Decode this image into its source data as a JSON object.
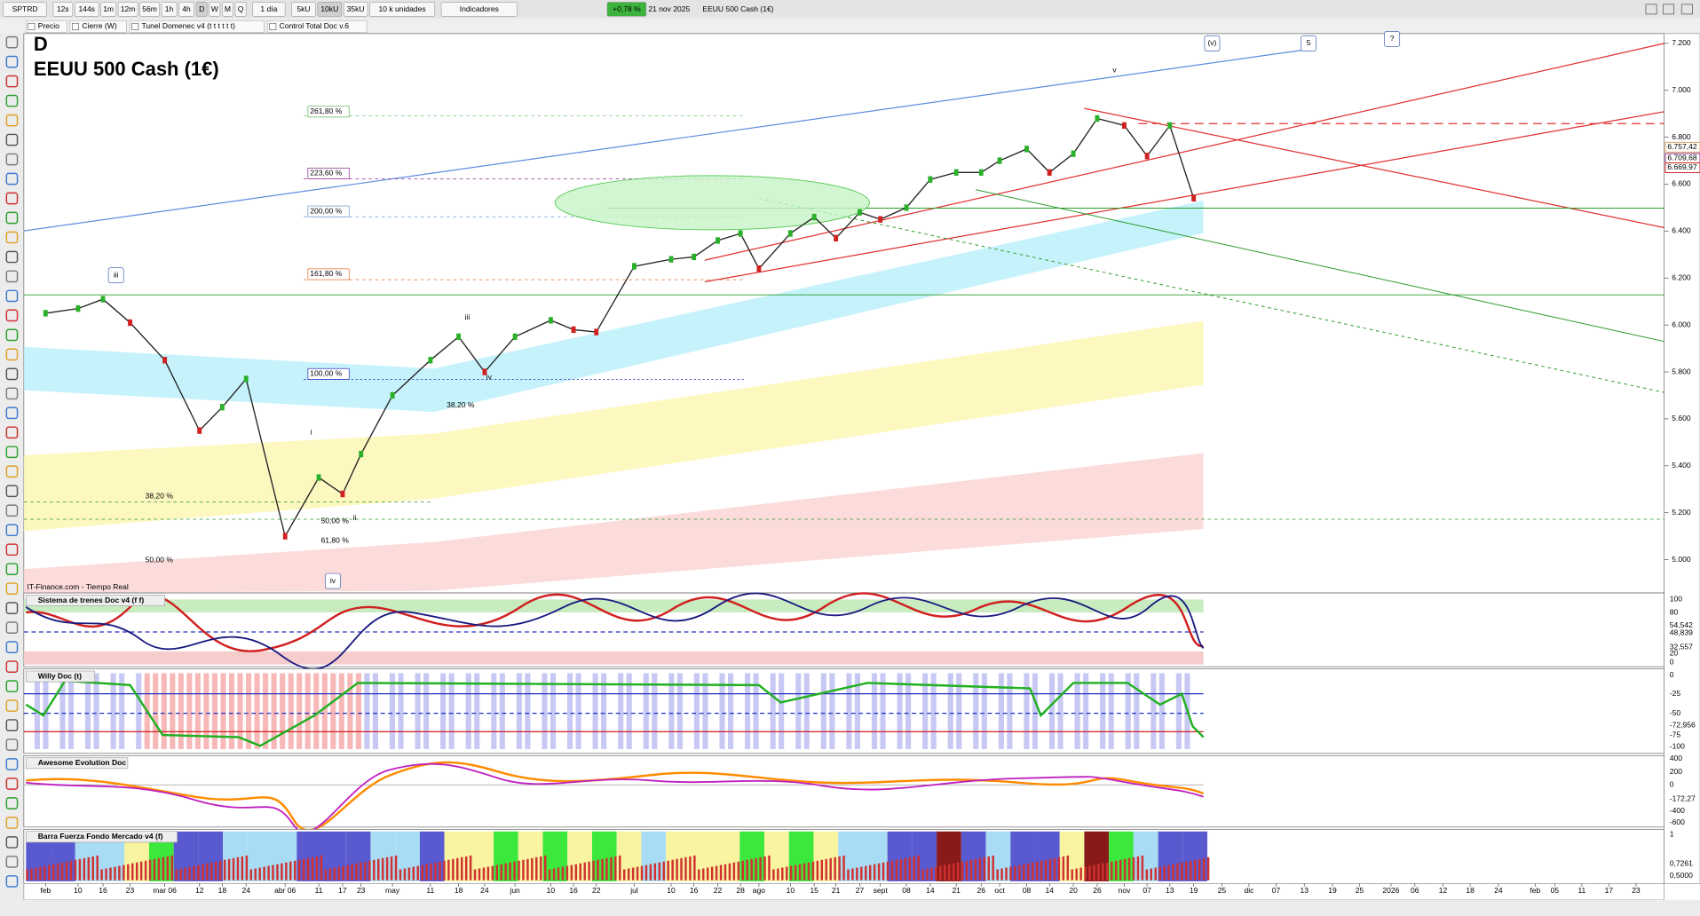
{
  "toolbar": {
    "symbol": "SPTRD",
    "intervals": [
      "12s",
      "144s",
      "1m",
      "12m",
      "56m",
      "1h",
      "4h",
      "D",
      "W",
      "M",
      "Q"
    ],
    "period": "1 día",
    "units": [
      "5kU",
      "10kU",
      "35kU"
    ],
    "units_label": "10 k unidades",
    "indicators": "Indicadores",
    "change": "+0,78 %",
    "date": "21 nov 2025",
    "instrument": "EEUU 500 Cash (1€)"
  },
  "studies": [
    "Precio",
    "Cierre (W)",
    "Tunel Domenec v4 (t t t t t t)",
    "Control Total Doc v.6"
  ],
  "chart": {
    "timeframe": "D",
    "title": "EEUU 500 Cash (1€)",
    "source": "IT-Finance.com - Tiempo Real",
    "price_ticks": [
      {
        "value": 7200,
        "label": "7.200"
      },
      {
        "value": 7000,
        "label": "7.000"
      },
      {
        "value": 6800,
        "label": "6.800"
      },
      {
        "value": 6600,
        "label": "6.600"
      },
      {
        "value": 6400,
        "label": "6.400"
      },
      {
        "value": 6200,
        "label": "6.200"
      },
      {
        "value": 6000,
        "label": "6.000"
      },
      {
        "value": 5800,
        "label": "5.800"
      },
      {
        "value": 5600,
        "label": "5.600"
      },
      {
        "value": 5400,
        "label": "5.400"
      },
      {
        "value": 5200,
        "label": "5.200"
      },
      {
        "value": 5000,
        "label": "5.000"
      }
    ],
    "price_tags": [
      {
        "value": 6757.42,
        "label": "6.757,42"
      },
      {
        "value": 6709.68,
        "label": "6.709,68"
      },
      {
        "value": 6669.97,
        "label": "6.669,97"
      }
    ],
    "fib_labels": [
      "261,80 %",
      "223,60 %",
      "200,00 %",
      "161,80 %",
      "100,00 %",
      "38,20 %",
      "38,20 %",
      "50,00 %",
      "50,00 %",
      "61,80 %"
    ],
    "wave_labels": [
      "iii",
      "i",
      "ii",
      "iv",
      "iii",
      "iv",
      "v",
      "(v)",
      "5",
      "?"
    ],
    "x_labels": [
      "feb",
      "10",
      "16",
      "23",
      "mar 06",
      "12",
      "18",
      "24",
      "abr 06",
      "11",
      "17",
      "23",
      "may",
      "11",
      "18",
      "24",
      "jun",
      "10",
      "16",
      "22",
      "jul",
      "10",
      "16",
      "22",
      "28",
      "ago",
      "10",
      "15",
      "21",
      "27",
      "sept",
      "08",
      "14",
      "21",
      "26",
      "oct",
      "08",
      "14",
      "20",
      "26",
      "nov",
      "07",
      "13",
      "19",
      "25",
      "dic",
      "07",
      "13",
      "19",
      "25",
      "2026",
      "06",
      "12",
      "18",
      "24",
      "feb",
      "05",
      "11",
      "17",
      "23"
    ],
    "closes": [
      6050,
      6070,
      6110,
      6010,
      5850,
      5550,
      5650,
      5770,
      5100,
      5350,
      5280,
      5450,
      5700,
      5850,
      5950,
      5800,
      5950,
      6020,
      5980,
      5970,
      6250,
      6280,
      6290,
      6360,
      6390,
      6240,
      6390,
      6460,
      6370,
      6480,
      6450,
      6500,
      6620,
      6650,
      6650,
      6700,
      6750,
      6650,
      6730,
      6880,
      6850,
      6720,
      6850,
      6540
    ]
  },
  "panels": [
    {
      "title": "Sistema de trenes Doc v4 (f f)",
      "axis_labels": [
        "100",
        "80",
        "54,542",
        "48,839",
        "32,557",
        "20",
        "0"
      ]
    },
    {
      "title": "Willy Doc (t)",
      "axis_labels": [
        "0",
        "-25",
        "-50",
        "-72,956",
        "-75",
        "-100"
      ]
    },
    {
      "title": "Awesome Evolution Doc",
      "axis_labels": [
        "400",
        "200",
        "0",
        "-172,27",
        "-400",
        "-600"
      ]
    },
    {
      "title": "Barra Fuerza Fondo Mercado v4 (f)",
      "axis_labels": [
        "1",
        "0,7261",
        "0,5000"
      ]
    }
  ]
}
